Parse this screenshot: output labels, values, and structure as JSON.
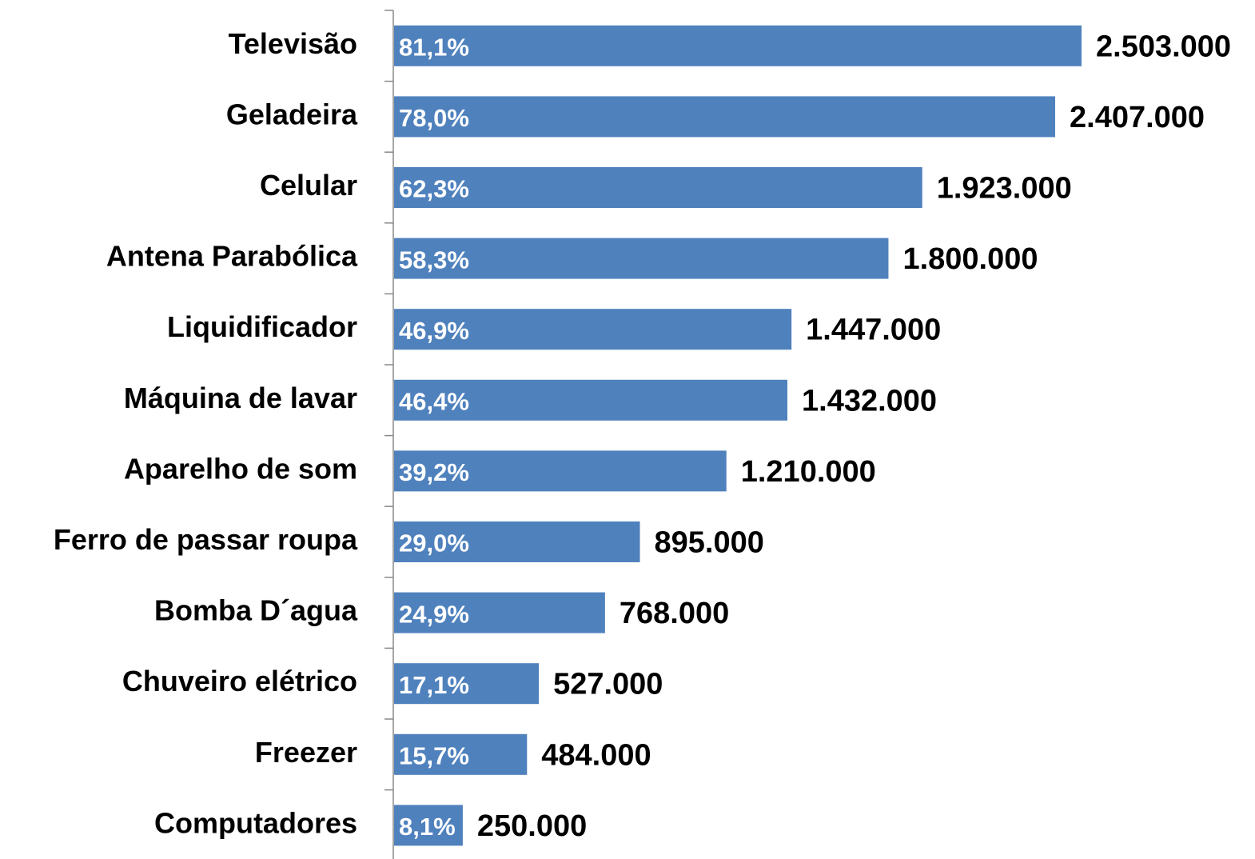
{
  "chart_data": {
    "type": "bar",
    "orientation": "horizontal",
    "color": "#4f81bd",
    "categories": [
      "Televisão",
      "Geladeira",
      "Celular",
      "Antena Parabólica",
      "Liquidificador",
      "Máquina de lavar",
      "Aparelho de som",
      "Ferro de passar roupa",
      "Bomba D´agua",
      "Chuveiro elétrico",
      "Freezer",
      "Computadores"
    ],
    "values": [
      2503000,
      2407000,
      1923000,
      1800000,
      1447000,
      1432000,
      1210000,
      895000,
      768000,
      527000,
      484000,
      250000
    ],
    "value_labels": [
      "2.503.000",
      "2.407.000",
      "1.923.000",
      "1.800.000",
      "1.447.000",
      "1.432.000",
      "1.210.000",
      "895.000",
      "768.000",
      "527.000",
      "484.000",
      "250.000"
    ],
    "shares": [
      81.1,
      78.0,
      62.3,
      58.3,
      46.9,
      46.4,
      39.2,
      29.0,
      24.9,
      17.1,
      15.7,
      8.1
    ],
    "share_labels": [
      "81,1%",
      "78,0%",
      "62,3%",
      "58,3%",
      "46,9%",
      "46,4%",
      "39,2%",
      "29,0%",
      "24,9%",
      "17,1%",
      "15,7%",
      "8,1%"
    ]
  }
}
